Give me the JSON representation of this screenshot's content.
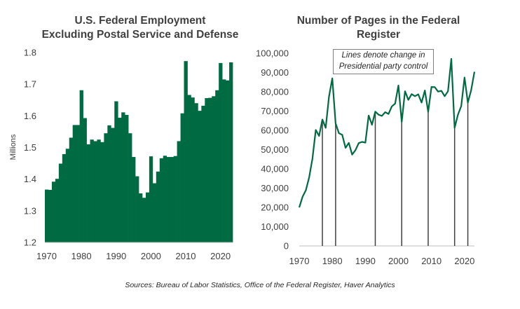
{
  "left_chart": {
    "title_line1": "U.S. Federal Employment",
    "title_line2": "Excluding Postal Service and Defense",
    "ylabel": "Millions",
    "color": "#006B43"
  },
  "right_chart": {
    "title_line1": "Number of Pages in the Federal",
    "title_line2": "Register",
    "note_line1": "Lines denote change in",
    "note_line2": "Presidential party control",
    "color": "#006B43"
  },
  "source": "Sources: Bureau of Labor Statistics, Office of the Federal Register, Haver Analytics",
  "chart_data": [
    {
      "type": "bar",
      "title": "U.S. Federal Employment Excluding Postal Service and Defense",
      "ylabel": "Millions",
      "xlabel": "",
      "ylim": [
        1.2,
        1.8
      ],
      "yticks": [
        "1.2",
        "1.3",
        "1.4",
        "1.5",
        "1.6",
        "1.7",
        "1.8"
      ],
      "xticks": [
        "1970",
        "1980",
        "1990",
        "2000",
        "2010",
        "2020"
      ],
      "categories": [
        1970,
        1971,
        1972,
        1973,
        1974,
        1975,
        1976,
        1977,
        1978,
        1979,
        1980,
        1981,
        1982,
        1983,
        1984,
        1985,
        1986,
        1987,
        1988,
        1989,
        1990,
        1991,
        1992,
        1993,
        1994,
        1995,
        1996,
        1997,
        1998,
        1999,
        2000,
        2001,
        2002,
        2003,
        2004,
        2005,
        2006,
        2007,
        2008,
        2009,
        2010,
        2011,
        2012,
        2013,
        2014,
        2015,
        2016,
        2017,
        2018,
        2019,
        2020,
        2021,
        2022,
        2023
      ],
      "values": [
        1.367,
        1.366,
        1.392,
        1.401,
        1.449,
        1.479,
        1.496,
        1.531,
        1.571,
        1.571,
        1.681,
        1.593,
        1.51,
        1.525,
        1.52,
        1.525,
        1.517,
        1.545,
        1.57,
        1.562,
        1.646,
        1.594,
        1.611,
        1.603,
        1.545,
        1.47,
        1.409,
        1.355,
        1.341,
        1.358,
        1.472,
        1.387,
        1.424,
        1.466,
        1.474,
        1.47,
        1.47,
        1.473,
        1.52,
        1.608,
        1.773,
        1.666,
        1.658,
        1.64,
        1.616,
        1.632,
        1.656,
        1.657,
        1.662,
        1.681,
        1.767,
        1.715,
        1.712,
        1.769
      ]
    },
    {
      "type": "line",
      "title": "Number of Pages in the Federal Register",
      "xlabel": "",
      "ylabel": "",
      "ylim": [
        0,
        100000
      ],
      "yticks": [
        "0",
        "10,000",
        "20,000",
        "30,000",
        "40,000",
        "50,000",
        "60,000",
        "70,000",
        "80,000",
        "90,000",
        "100,000"
      ],
      "xticks": [
        "1970",
        "1980",
        "1990",
        "2000",
        "2010",
        "2020"
      ],
      "x": [
        1970,
        1971,
        1972,
        1973,
        1974,
        1975,
        1976,
        1977,
        1978,
        1979,
        1980,
        1981,
        1982,
        1983,
        1984,
        1985,
        1986,
        1987,
        1988,
        1989,
        1990,
        1991,
        1992,
        1993,
        1994,
        1995,
        1996,
        1997,
        1998,
        1999,
        2000,
        2001,
        2002,
        2003,
        2004,
        2005,
        2006,
        2007,
        2008,
        2009,
        2010,
        2011,
        2012,
        2013,
        2014,
        2015,
        2016,
        2017,
        2018,
        2019,
        2020,
        2021,
        2022,
        2023
      ],
      "values": [
        20000,
        25500,
        28900,
        35600,
        45400,
        60200,
        57100,
        65600,
        61300,
        77500,
        87000,
        63600,
        58500,
        57700,
        50900,
        53500,
        47400,
        49700,
        53400,
        54000,
        53600,
        67700,
        62900,
        69700,
        68100,
        67500,
        69400,
        68500,
        72400,
        73900,
        83300,
        64400,
        80300,
        75800,
        78800,
        77700,
        78700,
        74400,
        80700,
        69600,
        82500,
        82400,
        80100,
        80500,
        77700,
        80300,
        97100,
        61300,
        68100,
        72600,
        87400,
        74400,
        80800,
        90400
      ],
      "party_change_years": [
        1977,
        1981,
        1993,
        2001,
        2009,
        2017,
        2021
      ]
    }
  ]
}
